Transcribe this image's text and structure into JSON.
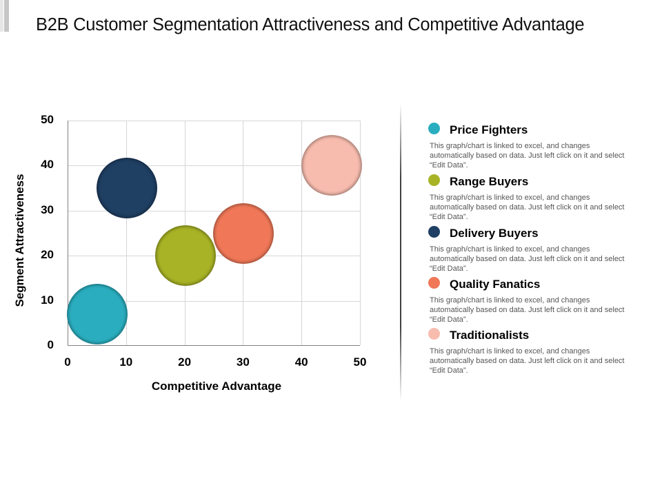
{
  "title": "B2B Customer Segmentation Attractiveness and Competitive Advantage",
  "chart_data": {
    "type": "scatter",
    "subtype": "bubble",
    "title": "B2B Customer Segmentation Attractiveness and Competitive Advantage",
    "xlabel": "Competitive Advantage",
    "ylabel": "Segment Attractiveness",
    "xlim": [
      0,
      50
    ],
    "ylim": [
      0,
      50
    ],
    "x_ticks": [
      "0",
      "10",
      "20",
      "30",
      "40",
      "50"
    ],
    "y_ticks": [
      "0",
      "10",
      "20",
      "30",
      "40",
      "50"
    ],
    "grid": true,
    "legend_position": "right",
    "series": [
      {
        "name": "Price Fighters",
        "x": 5,
        "y": 7,
        "size": 10,
        "color": "#2aaebf"
      },
      {
        "name": "Range Buyers",
        "x": 20,
        "y": 20,
        "size": 10,
        "color": "#a8b325"
      },
      {
        "name": "Delivery Buyers",
        "x": 10,
        "y": 35,
        "size": 10,
        "color": "#1f3f63"
      },
      {
        "name": "Quality Fanatics",
        "x": 30,
        "y": 25,
        "size": 10,
        "color": "#f07858"
      },
      {
        "name": "Traditionalists",
        "x": 45,
        "y": 40,
        "size": 10,
        "color": "#f7bcae"
      }
    ]
  },
  "legend": [
    {
      "name": "Price Fighters",
      "color": "#2aaebf",
      "desc": "This graph/chart is linked to excel, and changes automatically based on data. Just left click on it and select “Edit Data”."
    },
    {
      "name": "Range Buyers",
      "color": "#a8b325",
      "desc": "This graph/chart is linked to excel, and changes automatically based on data. Just left click on it and select “Edit Data”."
    },
    {
      "name": "Delivery Buyers",
      "color": "#1f3f63",
      "desc": "This graph/chart is linked to excel, and changes automatically based on data. Just left click on it and select “Edit Data”."
    },
    {
      "name": "Quality Fanatics",
      "color": "#f07858",
      "desc": "This graph/chart is linked to excel, and changes automatically based on data. Just left click on it and select “Edit Data”."
    },
    {
      "name": "Traditionalists",
      "color": "#f7bcae",
      "desc": "This graph/chart is linked to excel, and changes automatically based on data. Just left click on it and select “Edit Data”."
    }
  ]
}
